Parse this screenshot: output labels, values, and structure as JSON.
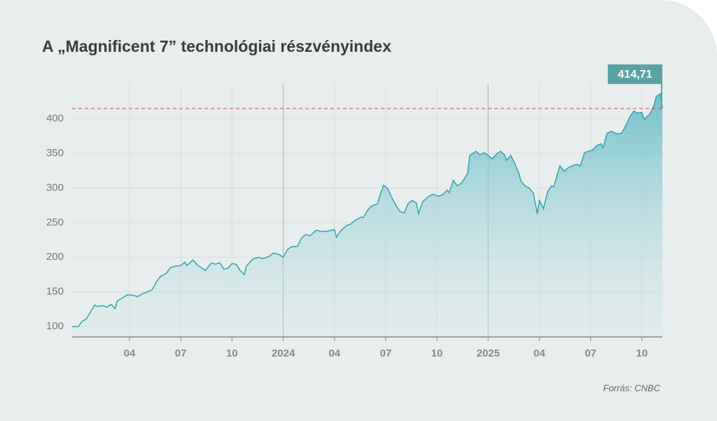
{
  "chart_data": {
    "type": "area",
    "title": "A „Magnificent 7” technológiai részvényindex",
    "source": "Forrás: CNBC",
    "color": "#2ea3ab",
    "annotation": {
      "value": 414.71,
      "label": "414,71"
    },
    "grid": true,
    "xlim": [
      2022.97,
      2025.85
    ],
    "ylim": [
      85,
      450
    ],
    "yticks": [
      100,
      150,
      200,
      250,
      300,
      350,
      400
    ],
    "xticks": [
      {
        "value": 2023.25,
        "label": "04"
      },
      {
        "value": 2023.5,
        "label": "07"
      },
      {
        "value": 2023.75,
        "label": "10"
      },
      2024,
      {
        "value": 2024.25,
        "label": "04"
      },
      {
        "value": 2024.5,
        "label": "07"
      },
      {
        "value": 2024.75,
        "label": "10"
      },
      2025,
      {
        "value": 2025.25,
        "label": "04"
      },
      {
        "value": 2025.5,
        "label": "07"
      },
      {
        "value": 2025.75,
        "label": "10"
      }
    ],
    "x": [
      2022.97,
      2023.0,
      2023.02,
      2023.04,
      2023.08,
      2023.09,
      2023.12,
      2023.14,
      2023.16,
      2023.18,
      2023.19,
      2023.22,
      2023.24,
      2023.27,
      2023.29,
      2023.31,
      2023.33,
      2023.36,
      2023.38,
      2023.4,
      2023.43,
      2023.45,
      2023.47,
      2023.5,
      2023.52,
      2023.53,
      2023.56,
      2023.58,
      2023.62,
      2023.65,
      2023.67,
      2023.69,
      2023.71,
      2023.73,
      2023.75,
      2023.77,
      2023.79,
      2023.81,
      2023.82,
      2023.85,
      2023.88,
      2023.9,
      2023.93,
      2023.95,
      2023.98,
      2024.0,
      2024.02,
      2024.04,
      2024.07,
      2024.09,
      2024.11,
      2024.13,
      2024.15,
      2024.16,
      2024.19,
      2024.22,
      2024.25,
      2024.26,
      2024.28,
      2024.31,
      2024.33,
      2024.35,
      2024.38,
      2024.39,
      2024.41,
      2024.43,
      2024.46,
      2024.47,
      2024.49,
      2024.51,
      2024.53,
      2024.55,
      2024.57,
      2024.59,
      2024.61,
      2024.63,
      2024.65,
      2024.66,
      2024.68,
      2024.71,
      2024.73,
      2024.76,
      2024.78,
      2024.8,
      2024.81,
      2024.83,
      2024.85,
      2024.87,
      2024.9,
      2024.91,
      2024.94,
      2024.96,
      2024.98,
      2025.0,
      2025.02,
      2025.04,
      2025.06,
      2025.08,
      2025.09,
      2025.11,
      2025.13,
      2025.15,
      2025.16,
      2025.18,
      2025.2,
      2025.22,
      2025.24,
      2025.25,
      2025.27,
      2025.29,
      2025.31,
      2025.32,
      2025.35,
      2025.37,
      2025.39,
      2025.41,
      2025.43,
      2025.45,
      2025.47,
      2025.49,
      2025.51,
      2025.53,
      2025.55,
      2025.56,
      2025.58,
      2025.6,
      2025.63,
      2025.65,
      2025.67,
      2025.69,
      2025.71,
      2025.73,
      2025.75,
      2025.76,
      2025.79,
      2025.81,
      2025.82,
      2025.84,
      2025.85
    ],
    "values": [
      100,
      100,
      108,
      111,
      131,
      129,
      130,
      128,
      132,
      126,
      137,
      142,
      146,
      145,
      143,
      147,
      149,
      153,
      164,
      172,
      177,
      185,
      187,
      188,
      193,
      188,
      196,
      189,
      181,
      192,
      190,
      192,
      183,
      184,
      191,
      190,
      181,
      175,
      187,
      197,
      200,
      198,
      201,
      206,
      204,
      200,
      211,
      215,
      216,
      228,
      233,
      231,
      236,
      239,
      237,
      238,
      240,
      229,
      238,
      246,
      248,
      253,
      258,
      257,
      267,
      274,
      277,
      288,
      304,
      299,
      286,
      275,
      266,
      264,
      278,
      282,
      278,
      263,
      280,
      288,
      291,
      288,
      291,
      297,
      293,
      311,
      303,
      307,
      321,
      347,
      353,
      348,
      351,
      347,
      342,
      349,
      353,
      348,
      340,
      347,
      335,
      321,
      310,
      303,
      300,
      293,
      263,
      282,
      270,
      295,
      303,
      302,
      332,
      324,
      329,
      332,
      334,
      332,
      351,
      353,
      355,
      361,
      364,
      358,
      379,
      382,
      378,
      379,
      389,
      402,
      411,
      408,
      409,
      399,
      407,
      420,
      432,
      436,
      414.71
    ]
  }
}
